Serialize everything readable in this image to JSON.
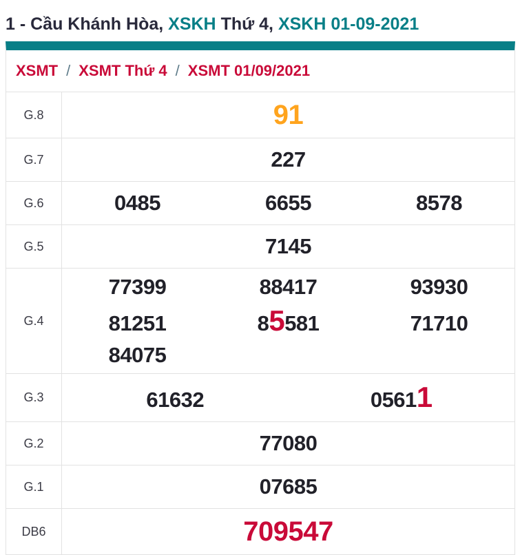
{
  "page_title": {
    "segments": [
      {
        "text": "1 - Cầu Khánh Hòa, ",
        "style": "dark",
        "link": false
      },
      {
        "text": "XSKH",
        "style": "teal",
        "link": true
      },
      {
        "text": " Thứ 4, ",
        "style": "dark",
        "link": false
      },
      {
        "text": "XSKH 01-09-2021",
        "style": "teal",
        "link": true
      }
    ]
  },
  "breadcrumb": {
    "separator": "/",
    "links": [
      "XSMT",
      "XSMT Thứ 4",
      "XSMT 01/09/2021"
    ]
  },
  "results": {
    "rows": [
      {
        "label": "G.8",
        "columns": 1,
        "lines": [
          [
            [
              {
                "text": "91",
                "style": "hl-orange"
              }
            ]
          ]
        ]
      },
      {
        "label": "G.7",
        "columns": 1,
        "lines": [
          [
            [
              {
                "text": "227"
              }
            ]
          ]
        ]
      },
      {
        "label": "G.6",
        "columns": 3,
        "lines": [
          [
            [
              {
                "text": "0485"
              }
            ],
            [
              {
                "text": "6655"
              }
            ],
            [
              {
                "text": "8578"
              }
            ]
          ]
        ]
      },
      {
        "label": "G.5",
        "columns": 1,
        "lines": [
          [
            [
              {
                "text": "7145"
              }
            ]
          ]
        ]
      },
      {
        "label": "G.4",
        "columns": 3,
        "lines": [
          [
            [
              {
                "text": "77399"
              }
            ],
            [
              {
                "text": "88417"
              }
            ],
            [
              {
                "text": "93930"
              }
            ]
          ],
          [
            [
              {
                "text": "81251"
              }
            ],
            [
              {
                "text": "8"
              },
              {
                "text": "5",
                "style": "hl-red"
              },
              {
                "text": "581"
              }
            ],
            [
              {
                "text": "71710"
              }
            ]
          ],
          [
            [
              {
                "text": "84075"
              }
            ],
            [],
            []
          ]
        ]
      },
      {
        "label": "G.3",
        "columns": 2,
        "lines": [
          [
            [
              {
                "text": "61632"
              }
            ],
            [
              {
                "text": "0561"
              },
              {
                "text": "1",
                "style": "hl-red"
              }
            ]
          ]
        ]
      },
      {
        "label": "G.2",
        "columns": 1,
        "lines": [
          [
            [
              {
                "text": "77080"
              }
            ]
          ]
        ]
      },
      {
        "label": "G.1",
        "columns": 1,
        "lines": [
          [
            [
              {
                "text": "07685"
              }
            ]
          ]
        ]
      },
      {
        "label": "DB6",
        "columns": 1,
        "lines": [
          [
            [
              {
                "text": "709547",
                "style": "hl-red-xl"
              }
            ]
          ]
        ]
      }
    ]
  },
  "colors": {
    "teal": "#087f87",
    "crimson": "#c90a38",
    "orange": "#ffa41e",
    "number": "#212129",
    "border": "#e2e2e2",
    "slash": "#607d8b",
    "dark": "#29293b",
    "label": "#3c3c46"
  }
}
